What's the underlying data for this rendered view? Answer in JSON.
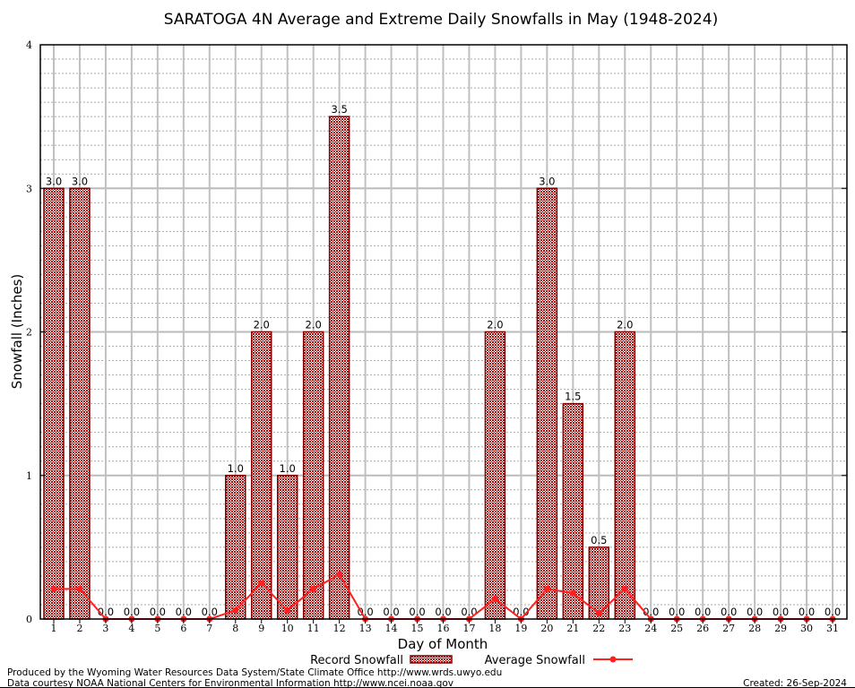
{
  "chart_data": {
    "type": "bar",
    "title": "SARATOGA 4N Average and Extreme Daily Snowfalls in May (1948-2024)",
    "xlabel": "Day of Month",
    "ylabel": "Snowfall (Inches)",
    "ylim": [
      0,
      4
    ],
    "yticks": [
      "0",
      "1",
      "2",
      "3",
      "4"
    ],
    "grid": true,
    "legend_placement": "bottom",
    "categories": [
      1,
      2,
      3,
      4,
      5,
      6,
      7,
      8,
      9,
      10,
      11,
      12,
      13,
      14,
      15,
      16,
      17,
      18,
      19,
      20,
      21,
      22,
      23,
      24,
      25,
      26,
      27,
      28,
      29,
      30,
      31
    ],
    "series": [
      {
        "name": "Record Snowfall",
        "type": "bar",
        "color": "#aa0000",
        "values": [
          3.0,
          3.0,
          0.0,
          0.0,
          0.0,
          0.0,
          0.0,
          1.0,
          2.0,
          1.0,
          2.0,
          3.5,
          0.0,
          0.0,
          0.0,
          0.0,
          0.0,
          2.0,
          0.0,
          3.0,
          1.5,
          0.5,
          2.0,
          0.0,
          0.0,
          0.0,
          0.0,
          0.0,
          0.0,
          0.0,
          0.0
        ]
      },
      {
        "name": "Average Snowfall",
        "type": "line",
        "color": "#ff2020",
        "values": [
          0.21,
          0.21,
          0,
          0,
          0,
          0,
          0,
          0.06,
          0.25,
          0.06,
          0.21,
          0.31,
          0,
          0,
          0,
          0,
          0,
          0.14,
          0,
          0.21,
          0.18,
          0.04,
          0.21,
          0,
          0,
          0,
          0,
          0,
          0,
          0,
          0
        ]
      }
    ]
  },
  "footer": {
    "producer": "Produced by the Wyoming Water Resources Data System/State Climate Office http://www.wrds.uwyo.edu",
    "source": "Data courtesy NOAA National Centers for Environmental Information http://www.ncei.noaa.gov",
    "created": "Created:  26-Sep-2024"
  }
}
